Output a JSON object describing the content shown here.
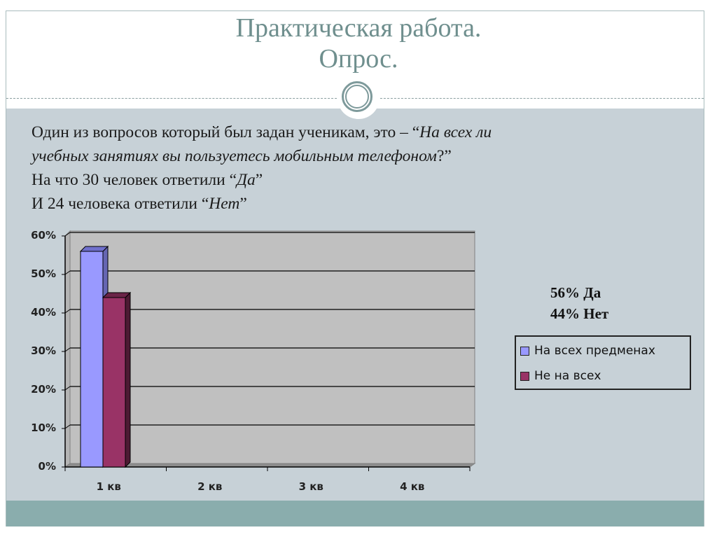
{
  "slide": {
    "title_line1": "Практическая работа.",
    "title_line2": "Опрос.",
    "body": {
      "line1_plain": "Один из вопросов который был задан ученикам, это – “",
      "line1_italic": "На всех ли",
      "line2_italic": "учебных занятиях вы пользуетесь мобильным телефоном",
      "line2_plain": "?”",
      "line3_plain": "На что 30 человек ответили “",
      "line3_italic": "Да",
      "line3_end": "”",
      "line4_plain": "И 24 человека ответили “",
      "line4_italic": "Нет",
      "line4_end": "”"
    },
    "stats": {
      "yes": "56% Да",
      "no": "44% Нет"
    },
    "colors": {
      "title": "#6f8f8e",
      "band": "#c7d1d7",
      "footer": "#8aadad",
      "series1": "#9999ff",
      "series2": "#993366"
    }
  },
  "chart_data": {
    "type": "bar",
    "title": "",
    "xlabel": "",
    "ylabel": "",
    "categories": [
      "1 кв",
      "2 кв",
      "3 кв",
      "4 кв"
    ],
    "series": [
      {
        "name": "На всех предменах",
        "values": [
          0.56,
          null,
          null,
          null
        ],
        "color": "#9999ff"
      },
      {
        "name": "Не на всех",
        "values": [
          0.44,
          null,
          null,
          null
        ],
        "color": "#993366"
      }
    ],
    "yticks": [
      "0%",
      "10%",
      "20%",
      "30%",
      "40%",
      "50%",
      "60%"
    ],
    "ylim": [
      0,
      0.6
    ],
    "grid": true,
    "legend_position": "right",
    "style": "3d-clustered-column"
  }
}
